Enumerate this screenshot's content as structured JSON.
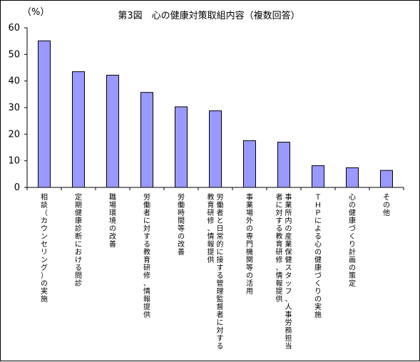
{
  "chart_data": {
    "type": "bar",
    "title": "第3図　心の健康対策取組内容（複数回答）",
    "ylabel": "（%）",
    "xlabel": "",
    "ylim": [
      0,
      60
    ],
    "yticks": [
      0,
      10,
      20,
      30,
      40,
      50,
      60
    ],
    "grid": false,
    "bar_color": "#9999ff",
    "bar_edge_color": "#000000",
    "categories": [
      [
        "相談（カウンセリング）の実施"
      ],
      [
        "定期健康診断における問診"
      ],
      [
        "職場環境の改善"
      ],
      [
        "労働者に対する教育研修、情報提供"
      ],
      [
        "労働時間等の改善"
      ],
      [
        "労働者と日常的に接する管理監督者に対する",
        "教育研修、情報提供"
      ],
      [
        "事業場外の専門機関等の活用"
      ],
      [
        "事業所内の産業保健スタッフ、人事労務担当",
        "者に対する教育研修、情報提供"
      ],
      [
        "ＴＨＰによる心の健康づくりの実施"
      ],
      [
        "心の健康づくり計画の策定"
      ],
      [
        "その他"
      ]
    ],
    "values": [
      55.1,
      43.5,
      42.2,
      35.7,
      30.3,
      28.8,
      17.6,
      17.0,
      8.2,
      7.4,
      6.4
    ]
  }
}
